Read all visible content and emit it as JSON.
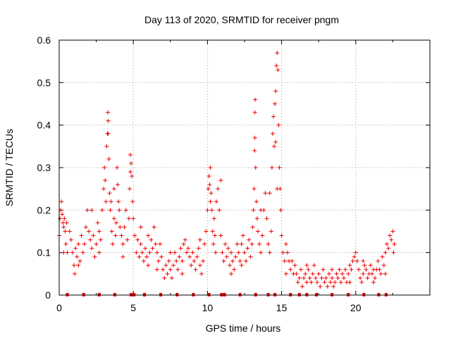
{
  "chart_data": {
    "type": "scatter",
    "title": "Day 113 of 2020, SRMTID for receiver pngm",
    "xlabel": "GPS time / hours",
    "ylabel": "SRMTID / TECUs",
    "xlim": [
      0,
      25
    ],
    "ylim": [
      0,
      0.6
    ],
    "x_ticks": [
      0,
      5,
      10,
      15,
      20
    ],
    "y_ticks": [
      0,
      0.1,
      0.2,
      0.3,
      0.4,
      0.5,
      0.6
    ],
    "x_tick_labels": [
      "0",
      "5",
      "10",
      "15",
      "20"
    ],
    "y_tick_labels": [
      "0",
      "0.1",
      "0.2",
      "0.3",
      "0.4",
      "0.5",
      "0.6"
    ],
    "grid": true,
    "marker": "+",
    "color": "#ee0000",
    "series": [
      {
        "name": "SRMTID",
        "points": [
          [
            0.0,
            0.14
          ],
          [
            0.05,
            0.18
          ],
          [
            0.1,
            0.2
          ],
          [
            0.15,
            0.22
          ],
          [
            0.2,
            0.19
          ],
          [
            0.25,
            0.17
          ],
          [
            0.3,
            0.16
          ],
          [
            0.35,
            0.18
          ],
          [
            0.4,
            0.15
          ],
          [
            0.45,
            0.12
          ],
          [
            0.5,
            0.17
          ],
          [
            0.55,
            0.1
          ],
          [
            0.7,
            0.15
          ],
          [
            0.8,
            0.13
          ],
          [
            0.9,
            0.1
          ],
          [
            1.0,
            0.07
          ],
          [
            1.05,
            0.05
          ],
          [
            1.1,
            0.11
          ],
          [
            1.2,
            0.09
          ],
          [
            1.3,
            0.12
          ],
          [
            1.4,
            0.08
          ],
          [
            1.5,
            0.14
          ],
          [
            1.6,
            0.1
          ],
          [
            1.7,
            0.12
          ],
          [
            1.8,
            0.16
          ],
          [
            1.9,
            0.2
          ],
          [
            2.0,
            0.15
          ],
          [
            2.1,
            0.13
          ],
          [
            2.2,
            0.11
          ],
          [
            2.3,
            0.14
          ],
          [
            2.4,
            0.09
          ],
          [
            2.5,
            0.12
          ],
          [
            2.6,
            0.17
          ],
          [
            2.7,
            0.15
          ],
          [
            2.8,
            0.13
          ],
          [
            2.9,
            0.2
          ],
          [
            3.0,
            0.25
          ],
          [
            3.05,
            0.3
          ],
          [
            3.1,
            0.27
          ],
          [
            3.15,
            0.22
          ],
          [
            3.2,
            0.35
          ],
          [
            3.25,
            0.38
          ],
          [
            3.28,
            0.43
          ],
          [
            3.3,
            0.41
          ],
          [
            3.35,
            0.32
          ],
          [
            3.4,
            0.24
          ],
          [
            3.45,
            0.2
          ],
          [
            3.5,
            0.22
          ],
          [
            3.55,
            0.15
          ],
          [
            3.6,
            0.12
          ],
          [
            3.7,
            0.18
          ],
          [
            3.8,
            0.14
          ],
          [
            3.85,
            0.17
          ],
          [
            3.9,
            0.3
          ],
          [
            3.95,
            0.26
          ],
          [
            4.0,
            0.22
          ],
          [
            4.05,
            0.2
          ],
          [
            4.1,
            0.16
          ],
          [
            4.2,
            0.14
          ],
          [
            4.3,
            0.12
          ],
          [
            4.4,
            0.16
          ],
          [
            4.5,
            0.2
          ],
          [
            4.6,
            0.13
          ],
          [
            4.7,
            0.18
          ],
          [
            4.75,
            0.25
          ],
          [
            4.8,
            0.33
          ],
          [
            4.85,
            0.31
          ],
          [
            4.9,
            0.28
          ],
          [
            4.95,
            0.22
          ],
          [
            5.0,
            0.18
          ],
          [
            5.1,
            0.14
          ],
          [
            5.2,
            0.1
          ],
          [
            5.3,
            0.13
          ],
          [
            5.4,
            0.09
          ],
          [
            5.5,
            0.12
          ],
          [
            5.6,
            0.1
          ],
          [
            5.7,
            0.08
          ],
          [
            5.8,
            0.11
          ],
          [
            5.9,
            0.09
          ],
          [
            6.0,
            0.07
          ],
          [
            6.1,
            0.1
          ],
          [
            6.2,
            0.13
          ],
          [
            6.3,
            0.11
          ],
          [
            6.4,
            0.16
          ],
          [
            6.5,
            0.12
          ],
          [
            6.6,
            0.1
          ],
          [
            6.7,
            0.08
          ],
          [
            6.8,
            0.12
          ],
          [
            6.9,
            0.09
          ],
          [
            7.0,
            0.06
          ],
          [
            7.1,
            0.04
          ],
          [
            7.2,
            0.07
          ],
          [
            7.3,
            0.05
          ],
          [
            7.4,
            0.08
          ],
          [
            7.5,
            0.06
          ],
          [
            7.6,
            0.04
          ],
          [
            7.7,
            0.07
          ],
          [
            7.8,
            0.1
          ],
          [
            7.9,
            0.08
          ],
          [
            8.0,
            0.06
          ],
          [
            8.1,
            0.09
          ],
          [
            8.2,
            0.11
          ],
          [
            8.3,
            0.08
          ],
          [
            8.4,
            0.12
          ],
          [
            8.5,
            0.13
          ],
          [
            8.6,
            0.1
          ],
          [
            8.7,
            0.11
          ],
          [
            8.8,
            0.09
          ],
          [
            8.9,
            0.07
          ],
          [
            9.0,
            0.1
          ],
          [
            9.1,
            0.08
          ],
          [
            9.2,
            0.06
          ],
          [
            9.3,
            0.09
          ],
          [
            9.4,
            0.11
          ],
          [
            9.5,
            0.07
          ],
          [
            9.6,
            0.05
          ],
          [
            9.7,
            0.08
          ],
          [
            9.8,
            0.12
          ],
          [
            9.9,
            0.15
          ],
          [
            10.0,
            0.2
          ],
          [
            10.05,
            0.25
          ],
          [
            10.1,
            0.28
          ],
          [
            10.15,
            0.26
          ],
          [
            10.2,
            0.3
          ],
          [
            10.25,
            0.24
          ],
          [
            10.3,
            0.2
          ],
          [
            10.35,
            0.15
          ],
          [
            10.4,
            0.12
          ],
          [
            10.45,
            0.18
          ],
          [
            10.5,
            0.14
          ],
          [
            10.55,
            0.1
          ],
          [
            10.6,
            0.22
          ],
          [
            10.7,
            0.25
          ],
          [
            10.8,
            0.2
          ],
          [
            10.9,
            0.14
          ],
          [
            11.0,
            0.1
          ],
          [
            11.1,
            0.08
          ],
          [
            11.2,
            0.12
          ],
          [
            11.3,
            0.09
          ],
          [
            11.4,
            0.11
          ],
          [
            11.5,
            0.07
          ],
          [
            11.6,
            0.1
          ],
          [
            11.7,
            0.08
          ],
          [
            11.8,
            0.06
          ],
          [
            11.9,
            0.09
          ],
          [
            12.0,
            0.12
          ],
          [
            12.1,
            0.1
          ],
          [
            12.2,
            0.08
          ],
          [
            12.3,
            0.12
          ],
          [
            12.4,
            0.14
          ],
          [
            12.5,
            0.1
          ],
          [
            12.6,
            0.08
          ],
          [
            12.7,
            0.11
          ],
          [
            12.8,
            0.13
          ],
          [
            12.9,
            0.09
          ],
          [
            13.0,
            0.12
          ],
          [
            13.05,
            0.16
          ],
          [
            13.1,
            0.2
          ],
          [
            13.15,
            0.25
          ],
          [
            13.18,
            0.34
          ],
          [
            13.2,
            0.43
          ],
          [
            13.22,
            0.46
          ],
          [
            13.25,
            0.3
          ],
          [
            13.3,
            0.22
          ],
          [
            13.35,
            0.18
          ],
          [
            13.4,
            0.15
          ],
          [
            13.5,
            0.12
          ],
          [
            13.6,
            0.1
          ],
          [
            13.7,
            0.14
          ],
          [
            13.8,
            0.2
          ],
          [
            13.9,
            0.24
          ],
          [
            14.0,
            0.18
          ],
          [
            14.1,
            0.12
          ],
          [
            14.2,
            0.1
          ],
          [
            14.3,
            0.15
          ],
          [
            14.35,
            0.3
          ],
          [
            14.4,
            0.38
          ],
          [
            14.45,
            0.42
          ],
          [
            14.5,
            0.35
          ],
          [
            14.55,
            0.45
          ],
          [
            14.6,
            0.48
          ],
          [
            14.65,
            0.54
          ],
          [
            14.7,
            0.57
          ],
          [
            14.75,
            0.53
          ],
          [
            14.8,
            0.4
          ],
          [
            14.85,
            0.3
          ],
          [
            14.9,
            0.25
          ],
          [
            14.95,
            0.2
          ],
          [
            15.0,
            0.14
          ],
          [
            15.1,
            0.1
          ],
          [
            15.2,
            0.08
          ],
          [
            15.3,
            0.12
          ],
          [
            15.4,
            0.1
          ],
          [
            15.5,
            0.08
          ],
          [
            15.6,
            0.06
          ],
          [
            15.7,
            0.08
          ],
          [
            15.8,
            0.05
          ],
          [
            15.9,
            0.07
          ],
          [
            16.0,
            0.05
          ],
          [
            16.1,
            0.03
          ],
          [
            16.2,
            0.04
          ],
          [
            16.3,
            0.06
          ],
          [
            16.4,
            0.02
          ],
          [
            16.5,
            0.04
          ],
          [
            16.6,
            0.05
          ],
          [
            16.7,
            0.03
          ],
          [
            16.8,
            0.06
          ],
          [
            16.9,
            0.04
          ],
          [
            17.0,
            0.03
          ],
          [
            17.1,
            0.05
          ],
          [
            17.2,
            0.07
          ],
          [
            17.3,
            0.04
          ],
          [
            17.4,
            0.03
          ],
          [
            17.5,
            0.05
          ],
          [
            17.6,
            0.02
          ],
          [
            17.7,
            0.04
          ],
          [
            17.8,
            0.06
          ],
          [
            17.9,
            0.03
          ],
          [
            18.0,
            0.04
          ],
          [
            18.1,
            0.02
          ],
          [
            18.2,
            0.05
          ],
          [
            18.3,
            0.03
          ],
          [
            18.4,
            0.04
          ],
          [
            18.5,
            0.02
          ],
          [
            18.6,
            0.03
          ],
          [
            18.7,
            0.05
          ],
          [
            18.8,
            0.04
          ],
          [
            18.9,
            0.06
          ],
          [
            19.0,
            0.03
          ],
          [
            19.1,
            0.05
          ],
          [
            19.2,
            0.04
          ],
          [
            19.3,
            0.06
          ],
          [
            19.4,
            0.03
          ],
          [
            19.5,
            0.05
          ],
          [
            19.6,
            0.07
          ],
          [
            19.7,
            0.06
          ],
          [
            19.8,
            0.08
          ],
          [
            19.9,
            0.09
          ],
          [
            20.0,
            0.1
          ],
          [
            20.1,
            0.08
          ],
          [
            20.2,
            0.06
          ],
          [
            20.3,
            0.04
          ],
          [
            20.4,
            0.03
          ],
          [
            20.5,
            0.05
          ],
          [
            20.6,
            0.07
          ],
          [
            20.7,
            0.06
          ],
          [
            20.8,
            0.04
          ],
          [
            20.9,
            0.05
          ],
          [
            21.0,
            0.07
          ],
          [
            21.1,
            0.05
          ],
          [
            21.2,
            0.03
          ],
          [
            21.3,
            0.04
          ],
          [
            21.4,
            0.06
          ],
          [
            21.5,
            0.08
          ],
          [
            21.6,
            0.06
          ],
          [
            21.7,
            0.05
          ],
          [
            21.8,
            0.09
          ],
          [
            21.9,
            0.07
          ],
          [
            22.0,
            0.1
          ],
          [
            22.1,
            0.12
          ],
          [
            22.2,
            0.11
          ],
          [
            22.3,
            0.14
          ],
          [
            22.4,
            0.13
          ],
          [
            22.5,
            0.15
          ],
          [
            22.55,
            0.1
          ],
          [
            22.6,
            0.12
          ],
          [
            0.3,
            0.1
          ],
          [
            1.3,
            0.07
          ],
          [
            2.2,
            0.2
          ],
          [
            3.7,
            0.25
          ],
          [
            4.3,
            0.09
          ],
          [
            5.5,
            0.16
          ],
          [
            6.6,
            0.06
          ],
          [
            8.3,
            0.05
          ],
          [
            9.5,
            0.13
          ],
          [
            10.9,
            0.27
          ],
          [
            11.6,
            0.05
          ],
          [
            12.3,
            0.07
          ],
          [
            13.6,
            0.2
          ],
          [
            14.2,
            0.24
          ],
          [
            15.3,
            0.05
          ],
          [
            16.7,
            0.07
          ],
          [
            18.4,
            0.06
          ],
          [
            19.6,
            0.03
          ],
          [
            20.5,
            0.08
          ],
          [
            21.2,
            0.06
          ],
          [
            22.0,
            0.05
          ],
          [
            3.3,
            0.38
          ],
          [
            4.8,
            0.29
          ],
          [
            10.2,
            0.22
          ],
          [
            13.2,
            0.37
          ],
          [
            14.6,
            0.36
          ],
          [
            14.7,
            0.25
          ],
          [
            2.7,
            0.1
          ],
          [
            6.0,
            0.14
          ],
          [
            7.5,
            0.1
          ]
        ]
      }
    ],
    "gap_markers_x": [
      0.55,
      1.65,
      2.7,
      3.75,
      4.85,
      5.05,
      5.75,
      6.85,
      7.95,
      9.05,
      10.1,
      10.95,
      11.15,
      12.2,
      13.25,
      14.1,
      14.55,
      15.6,
      16.2,
      16.7,
      17.35,
      18.4,
      19.5,
      20.55,
      21.55,
      22.05
    ]
  }
}
